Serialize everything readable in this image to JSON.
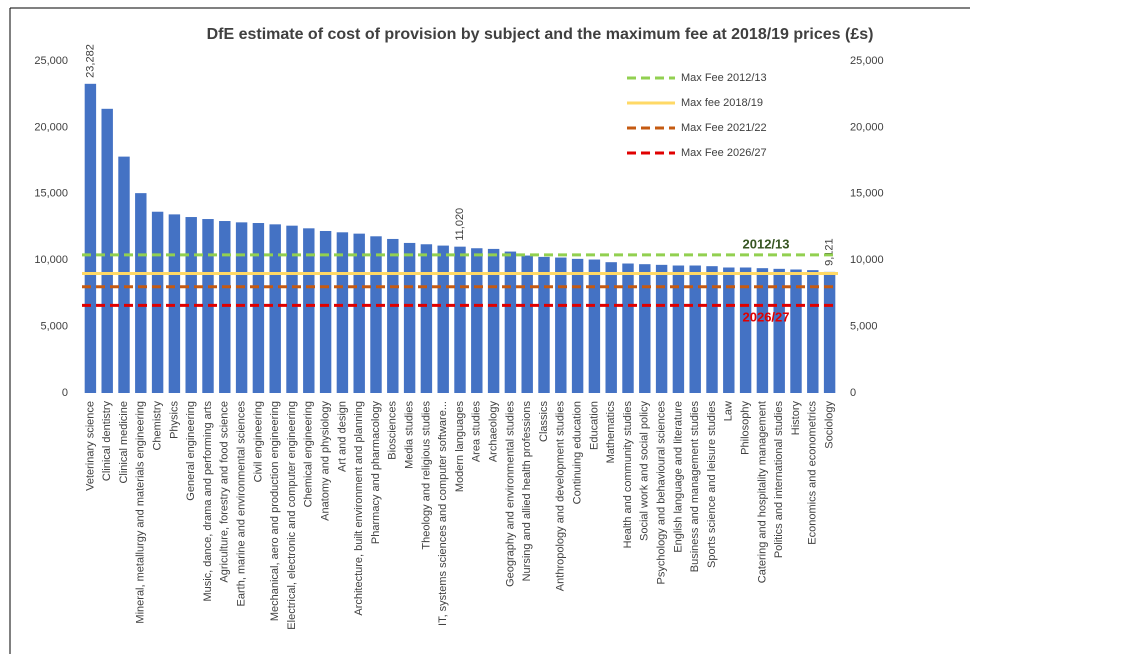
{
  "chart_data": {
    "type": "bar",
    "title": "DfE estimate of cost of provision by subject and the maximum fee at 2018/19 prices (£s)",
    "categories": [
      "Veterinary science",
      "Clinical dentistry",
      "Clinical medicine",
      "Mineral, metallurgy and materials engineering",
      "Chemistry",
      "Physics",
      "General engineering",
      "Music, dance, drama and performing arts",
      "Agriculture, forestry and food science",
      "Earth, marine and environmental sciences",
      "Civil engineering",
      "Mechanical, aero and production engineering",
      "Electrical, electronic and computer engineering",
      "Chemical engineering",
      "Anatomy and physiology",
      "Art and design",
      "Architecture, built environment and planning",
      "Pharmacy and pharmacology",
      "Biosciences",
      "Media studies",
      "Theology and religious studies",
      "IT, systems sciences and computer software...",
      "Modern languages",
      "Area studies",
      "Archaeology",
      "Geography and environmental studies",
      "Nursing and allied health professions",
      "Classics",
      "Anthropology and development studies",
      "Continuing education",
      "Education",
      "Mathematics",
      "Health and community studies",
      "Social work and social policy",
      "Psychology and behavioural sciences",
      "English language and literature",
      "Business and management studies",
      "Sports science and leisure studies",
      "Law",
      "Philosophy",
      "Catering and hospitality management",
      "Politics and international studies",
      "History",
      "Economics and econometrics",
      "Sociology"
    ],
    "values": [
      23282,
      21400,
      17800,
      15050,
      13650,
      13450,
      13250,
      13100,
      12950,
      12850,
      12800,
      12700,
      12600,
      12400,
      12200,
      12100,
      12000,
      11800,
      11600,
      11300,
      11200,
      11100,
      11020,
      10900,
      10850,
      10650,
      10350,
      10250,
      10200,
      10100,
      10050,
      9850,
      9750,
      9700,
      9650,
      9600,
      9600,
      9550,
      9450,
      9450,
      9400,
      9350,
      9300,
      9250,
      9121
    ],
    "value_labels": [
      "23,282",
      null,
      null,
      null,
      null,
      null,
      null,
      null,
      null,
      null,
      null,
      null,
      null,
      null,
      null,
      null,
      null,
      null,
      null,
      null,
      null,
      null,
      "11,020",
      null,
      null,
      null,
      null,
      null,
      null,
      null,
      null,
      null,
      null,
      null,
      null,
      null,
      null,
      null,
      null,
      null,
      null,
      null,
      null,
      null,
      "9,121"
    ],
    "color": "#4472c4",
    "reference_lines": [
      {
        "name": "Max Fee 2012/13",
        "value": 10400,
        "color": "#92d050",
        "dashed": true
      },
      {
        "name": "Max fee 2018/19",
        "value": 9000,
        "color": "#ffd966",
        "dashed": false
      },
      {
        "name": "Max Fee 2021/22",
        "value": 8000,
        "color": "#c55a11",
        "dashed": true
      },
      {
        "name": "Max Fee 2026/27",
        "value": 6600,
        "color": "#e00000",
        "dashed": true
      }
    ],
    "annotations": [
      {
        "text": "2012/13",
        "color": "#375623"
      },
      {
        "text": "2026/27",
        "color": "#e00000"
      }
    ],
    "ylim": [
      0,
      25000
    ],
    "yticks": [
      0,
      {
        "value": 5000,
        "label": "5,000"
      },
      {
        "value": 10000,
        "label": "10,000"
      },
      {
        "value": 15000,
        "label": "15,000"
      },
      {
        "value": 20000,
        "label": "20,000"
      },
      {
        "value": 25000,
        "label": "25,000"
      }
    ],
    "y2lim": [
      0,
      25000
    ],
    "y2ticks": [
      0,
      {
        "value": 5000,
        "label": "5,000"
      },
      {
        "value": 10000,
        "label": "10,000"
      },
      {
        "value": 15000,
        "label": "15,000"
      },
      {
        "value": 20000,
        "label": "20,000"
      },
      {
        "value": 25000,
        "label": "25,000"
      }
    ],
    "legend": "top-right"
  }
}
